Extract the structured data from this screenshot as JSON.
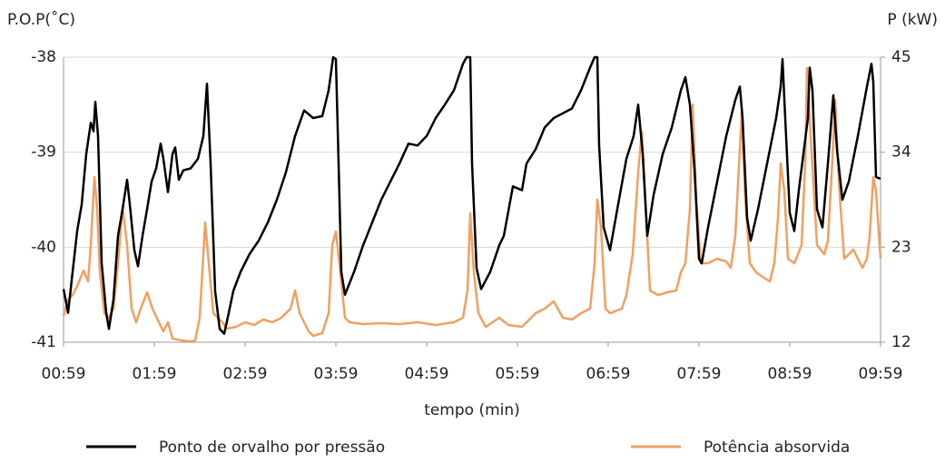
{
  "chart_data": {
    "type": "line",
    "ylabel": "P.O.P(˚C)",
    "y2label": "P (kW)",
    "xlabel": "tempo (min)",
    "xlim": [
      59,
      599
    ],
    "xticks": [
      {
        "value": 59,
        "label": "00:59"
      },
      {
        "value": 119,
        "label": "01:59"
      },
      {
        "value": 179,
        "label": "02:59"
      },
      {
        "value": 239,
        "label": "03:59"
      },
      {
        "value": 299,
        "label": "04:59"
      },
      {
        "value": 359,
        "label": "05:59"
      },
      {
        "value": 419,
        "label": "06:59"
      },
      {
        "value": 479,
        "label": "07:59"
      },
      {
        "value": 539,
        "label": "08:59"
      },
      {
        "value": 599,
        "label": "09:59"
      }
    ],
    "ylim": [
      -41,
      -38
    ],
    "yticks": [
      -41,
      -40,
      -39,
      -38
    ],
    "y2lim": [
      12,
      45
    ],
    "y2ticks": [
      12,
      23,
      34,
      45
    ],
    "grid": true,
    "legend": "bottom",
    "series": [
      {
        "name": "Ponto de orvalho por pressão",
        "color": "#000000",
        "x": [
          59,
          62,
          65,
          68,
          71,
          74,
          77,
          78.8,
          80,
          81.8,
          84.2,
          87.2,
          89,
          92,
          95,
          98,
          101,
          102.8,
          105.8,
          108.2,
          111.2,
          114.2,
          117.2,
          120.2,
          123.2,
          125,
          128,
          131,
          132.8,
          135.2,
          138.2,
          143,
          147.8,
          151.4,
          153.8,
          156.2,
          159.2,
          162.2,
          165.2,
          168.2,
          171.2,
          176,
          182,
          188,
          194,
          200,
          206,
          212,
          218,
          224,
          230,
          234.2,
          237.2,
          239,
          240.8,
          242.6,
          245,
          251,
          257,
          263,
          269,
          275,
          281,
          287,
          293,
          299,
          305,
          311,
          317,
          323,
          325.4,
          327.8,
          329,
          332,
          335,
          341,
          347,
          350,
          356,
          362,
          365,
          371,
          377,
          383,
          389,
          395,
          401,
          407,
          410,
          411.8,
          413,
          416,
          420.2,
          425,
          431,
          435.8,
          438.8,
          441.8,
          444.8,
          449,
          455,
          461,
          467,
          470,
          473,
          476,
          479,
          480.8,
          485,
          491,
          497,
          503,
          506,
          507.8,
          510.8,
          513.2,
          518,
          524,
          530,
          533,
          534.2,
          536,
          539,
          542,
          545,
          551,
          552.2,
          554,
          557,
          560.6,
          564.2,
          567.8,
          570.2,
          573.8,
          578,
          584,
          590,
          593,
          594.2,
          596,
          599
        ],
        "values": [
          -40.44,
          -40.69,
          -40.26,
          -39.83,
          -39.55,
          -39.02,
          -38.69,
          -38.78,
          -38.47,
          -38.83,
          -40.17,
          -40.69,
          -40.86,
          -40.55,
          -39.88,
          -39.6,
          -39.29,
          -39.55,
          -40.03,
          -40.2,
          -39.88,
          -39.6,
          -39.31,
          -39.17,
          -38.91,
          -39.07,
          -39.42,
          -39.02,
          -38.95,
          -39.29,
          -39.19,
          -39.17,
          -39.07,
          -38.83,
          -38.28,
          -39.12,
          -40.46,
          -40.86,
          -40.91,
          -40.69,
          -40.46,
          -40.26,
          -40.07,
          -39.93,
          -39.74,
          -39.5,
          -39.21,
          -38.83,
          -38.56,
          -38.64,
          -38.62,
          -38.35,
          -38.0,
          -38.02,
          -39.12,
          -40.26,
          -40.5,
          -40.26,
          -39.98,
          -39.74,
          -39.5,
          -39.31,
          -39.12,
          -38.91,
          -38.93,
          -38.83,
          -38.64,
          -38.5,
          -38.35,
          -38.07,
          -38.0,
          -38.0,
          -39.12,
          -40.22,
          -40.44,
          -40.26,
          -39.98,
          -39.88,
          -39.36,
          -39.4,
          -39.12,
          -38.97,
          -38.74,
          -38.64,
          -38.59,
          -38.54,
          -38.35,
          -38.11,
          -38.0,
          -38.0,
          -38.93,
          -39.79,
          -40.03,
          -39.6,
          -39.07,
          -38.83,
          -38.5,
          -39.02,
          -39.88,
          -39.45,
          -39.02,
          -38.74,
          -38.35,
          -38.21,
          -38.5,
          -39.17,
          -40.12,
          -40.17,
          -39.79,
          -39.31,
          -38.83,
          -38.45,
          -38.31,
          -38.64,
          -39.69,
          -39.93,
          -39.6,
          -39.12,
          -38.64,
          -38.31,
          -38.02,
          -38.64,
          -39.64,
          -39.83,
          -39.4,
          -38.64,
          -38.11,
          -38.35,
          -39.6,
          -39.79,
          -39.12,
          -38.4,
          -38.97,
          -39.5,
          -39.31,
          -38.83,
          -38.31,
          -38.07,
          -38.26,
          -39.26,
          -39.28
        ]
      },
      {
        "name": "Potência absorvida",
        "color": "#f0a060",
        "axis": "y2",
        "x": [
          59,
          62,
          65,
          68,
          72.2,
          75.2,
          77,
          79.4,
          81.2,
          83,
          86,
          89,
          92,
          95,
          98,
          101,
          104,
          107,
          110,
          114.2,
          117.8,
          122,
          125,
          128,
          131,
          137,
          143,
          146,
          149,
          152.6,
          155,
          158,
          161,
          164,
          167,
          173,
          179,
          185,
          191,
          197,
          203,
          209,
          212,
          215,
          221,
          224,
          230,
          234.2,
          236.6,
          239,
          242,
          245,
          248,
          257,
          269,
          281,
          293,
          305,
          317,
          323,
          326,
          327.8,
          330.2,
          333.2,
          338,
          347,
          353,
          362,
          371,
          377,
          383,
          389,
          395,
          401,
          407,
          410,
          411.8,
          414.2,
          417.2,
          420.2,
          428,
          431,
          435.2,
          438.8,
          441.2,
          444.2,
          446.6,
          452,
          458,
          464,
          467,
          470,
          473,
          474.8,
          477.2,
          480.2,
          485,
          491,
          497,
          500,
          503,
          507.2,
          509.6,
          512.6,
          516.8,
          521,
          525.8,
          528.8,
          531.2,
          533,
          535.4,
          537.8,
          542,
          546.8,
          549.2,
          550.4,
          552.8,
          557,
          561.8,
          564.2,
          567.2,
          569,
          571.4,
          575,
          578,
          581,
          584,
          587,
          590,
          591.8,
          594.2,
          596,
          599
        ],
        "values": [
          15.05,
          16.94,
          17.47,
          18.52,
          20.3,
          19.04,
          23.25,
          31.13,
          27.45,
          20.09,
          15.36,
          14.84,
          15.89,
          21.14,
          27.66,
          23.25,
          15.89,
          14.31,
          15.89,
          17.78,
          15.89,
          14.31,
          13.26,
          14.31,
          12.42,
          12.21,
          12.11,
          12.21,
          14.84,
          25.87,
          21.14,
          15.36,
          14.84,
          14.31,
          13.58,
          13.79,
          14.31,
          14.0,
          14.63,
          14.31,
          14.84,
          15.89,
          17.99,
          15.36,
          13.26,
          12.74,
          13.05,
          15.36,
          23.25,
          24.82,
          20.09,
          14.84,
          14.31,
          14.1,
          14.21,
          14.1,
          14.31,
          14.0,
          14.31,
          14.84,
          17.99,
          26.92,
          20.09,
          15.36,
          13.79,
          14.84,
          14.0,
          13.79,
          15.36,
          15.89,
          16.73,
          14.84,
          14.63,
          15.36,
          15.89,
          21.14,
          28.5,
          25.35,
          15.89,
          15.36,
          15.89,
          17.47,
          22.19,
          31.65,
          36.38,
          26.4,
          17.99,
          17.47,
          17.78,
          17.99,
          20.09,
          21.14,
          27.45,
          39.54,
          28.5,
          21.14,
          21.14,
          21.67,
          21.35,
          20.62,
          24.3,
          38.49,
          28.5,
          21.14,
          20.09,
          19.57,
          19.04,
          21.14,
          26.4,
          32.7,
          29.55,
          21.67,
          21.14,
          23.25,
          32.7,
          43.74,
          35.86,
          23.25,
          22.19,
          23.77,
          33.23,
          40.06,
          30.6,
          21.67,
          22.19,
          22.72,
          21.67,
          20.62,
          21.67,
          24.3,
          31.13,
          29.55,
          21.67
        ]
      }
    ]
  }
}
